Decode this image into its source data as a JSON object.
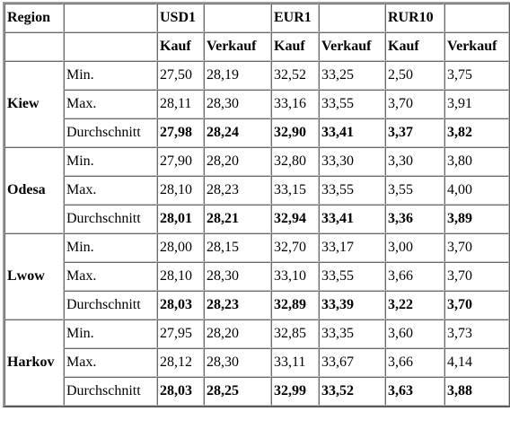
{
  "header": {
    "region": "Region",
    "currencies": [
      "USD1",
      "EUR1",
      "RUR10"
    ],
    "kauf": "Kauf",
    "verkauf": "Verkauf"
  },
  "regions": [
    {
      "name": "Kiew",
      "rows": [
        {
          "label": "Min.",
          "values": [
            "27,50",
            "28,19",
            "32,52",
            "33,25",
            "2,50",
            "3,75"
          ]
        },
        {
          "label": "Max.",
          "values": [
            "28,11",
            "28,30",
            "33,16",
            "33,55",
            "3,70",
            "3,91"
          ]
        },
        {
          "label": "Durchschnitt",
          "values": [
            "27,98",
            "28,24",
            "32,90",
            "33,41",
            "3,37",
            "3,82"
          ]
        }
      ]
    },
    {
      "name": "Odesa",
      "rows": [
        {
          "label": "Min.",
          "values": [
            "27,90",
            "28,20",
            "32,80",
            "33,30",
            "3,30",
            "3,80"
          ]
        },
        {
          "label": "Max.",
          "values": [
            "28,10",
            "28,23",
            "33,15",
            "33,55",
            "3,55",
            "4,00"
          ]
        },
        {
          "label": "Durchschnitt",
          "values": [
            "28,01",
            "28,21",
            "32,94",
            "33,41",
            "3,36",
            "3,89"
          ]
        }
      ]
    },
    {
      "name": "Lwow",
      "rows": [
        {
          "label": "Min.",
          "values": [
            "28,00",
            "28,15",
            "32,70",
            "33,17",
            "3,00",
            "3,70"
          ]
        },
        {
          "label": "Max.",
          "values": [
            "28,10",
            "28,30",
            "33,10",
            "33,55",
            "3,66",
            "3,70"
          ]
        },
        {
          "label": "Durchschnitt",
          "values": [
            "28,03",
            "28,23",
            "32,89",
            "33,39",
            "3,22",
            "3,70"
          ]
        }
      ]
    },
    {
      "name": "Harkov",
      "rows": [
        {
          "label": "Min.",
          "values": [
            "27,95",
            "28,20",
            "32,85",
            "33,35",
            "3,60",
            "3,73"
          ]
        },
        {
          "label": "Max.",
          "values": [
            "28,12",
            "28,30",
            "33,11",
            "33,67",
            "3,66",
            "4,14"
          ]
        },
        {
          "label": "Durchschnitt",
          "values": [
            "28,03",
            "28,25",
            "32,99",
            "33,52",
            "3,63",
            "3,88"
          ]
        }
      ]
    }
  ]
}
